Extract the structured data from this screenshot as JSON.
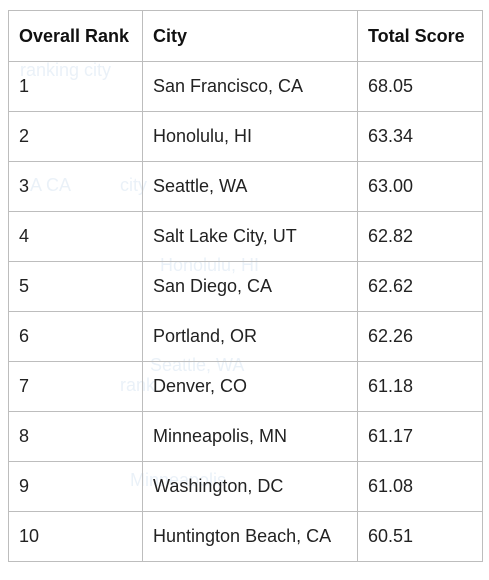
{
  "table": {
    "headers": [
      "Overall Rank",
      "City",
      "Total Score"
    ],
    "rows": [
      {
        "rank": "1",
        "city": "San Francisco, CA",
        "score": "68.05"
      },
      {
        "rank": "2",
        "city": "Honolulu, HI",
        "score": "63.34"
      },
      {
        "rank": "3",
        "city": "Seattle, WA",
        "score": "63.00"
      },
      {
        "rank": "4",
        "city": "Salt Lake City, UT",
        "score": "62.82"
      },
      {
        "rank": "5",
        "city": "San Diego, CA",
        "score": "62.62"
      },
      {
        "rank": "6",
        "city": "Portland, OR",
        "score": "62.26"
      },
      {
        "rank": "7",
        "city": "Denver, CO",
        "score": "61.18"
      },
      {
        "rank": "8",
        "city": "Minneapolis, MN",
        "score": "61.17"
      },
      {
        "rank": "9",
        "city": "Washington, DC",
        "score": "61.08"
      },
      {
        "rank": "10",
        "city": "Huntington Beach, CA",
        "score": "60.51"
      }
    ]
  }
}
